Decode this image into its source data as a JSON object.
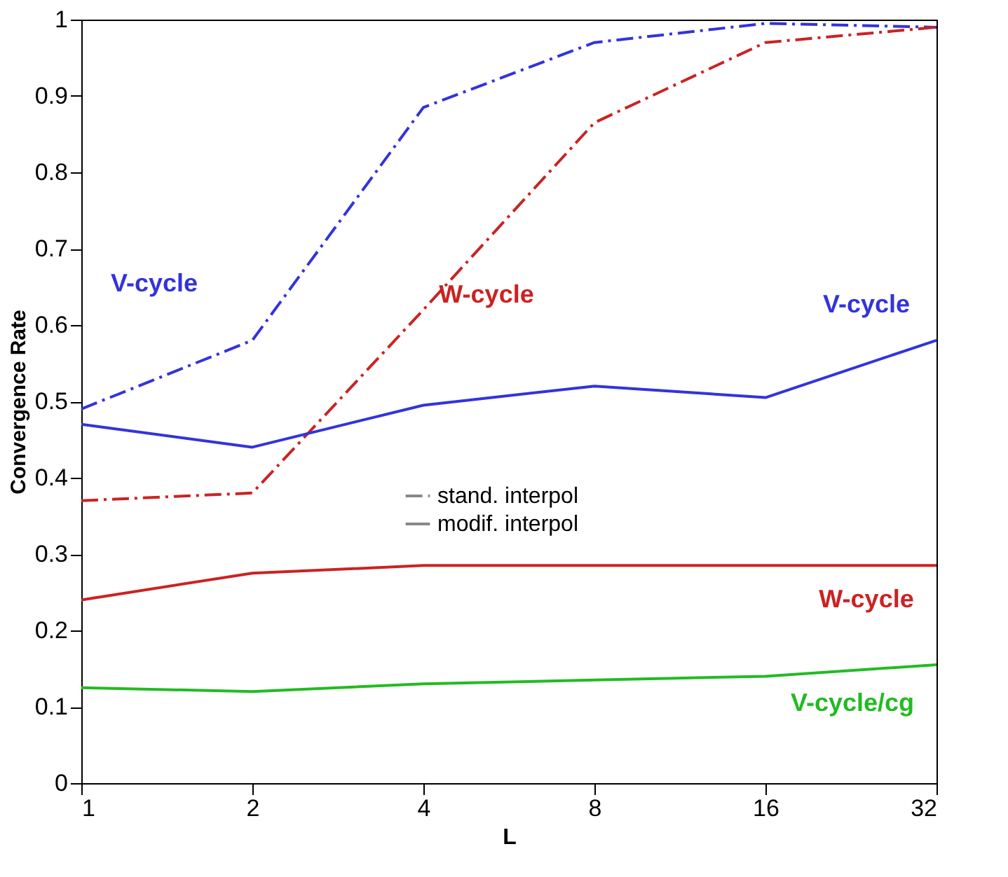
{
  "chart_data": {
    "type": "line",
    "xlabel": "L",
    "ylabel": "Convergence Rate",
    "categories": [
      "1",
      "2",
      "4",
      "8",
      "16",
      "32"
    ],
    "ylim": [
      0,
      1
    ],
    "yticks": [
      0,
      0.1,
      0.2,
      0.3,
      0.4,
      0.5,
      0.6,
      0.7,
      0.8,
      0.9,
      1
    ],
    "grid": false,
    "legend": "center",
    "marker": "none",
    "annotations": [
      "stand. interpol",
      "modif. interpol"
    ],
    "series": [
      {
        "name": "V-cycle",
        "color": "#3333dd",
        "line_style": "dashed",
        "values": [
          0.49,
          0.58,
          0.885,
          0.97,
          0.995,
          0.99
        ]
      },
      {
        "name": "W-cycle",
        "color": "#cc2222",
        "line_style": "dashed",
        "values": [
          0.37,
          0.38,
          0.62,
          0.865,
          0.97,
          0.99
        ]
      },
      {
        "name": "V-cycle",
        "color": "#3333dd",
        "line_style": "solid",
        "values": [
          0.47,
          0.44,
          0.495,
          0.52,
          0.505,
          0.58
        ]
      },
      {
        "name": "W-cycle",
        "color": "#cc2222",
        "line_style": "solid",
        "values": [
          0.24,
          0.275,
          0.285,
          0.285,
          0.285,
          0.285
        ]
      },
      {
        "name": "V-cycle/cg",
        "color": "#22bb22",
        "line_style": "solid",
        "values": [
          0.125,
          0.12,
          0.13,
          0.135,
          0.14,
          0.155
        ]
      }
    ]
  }
}
